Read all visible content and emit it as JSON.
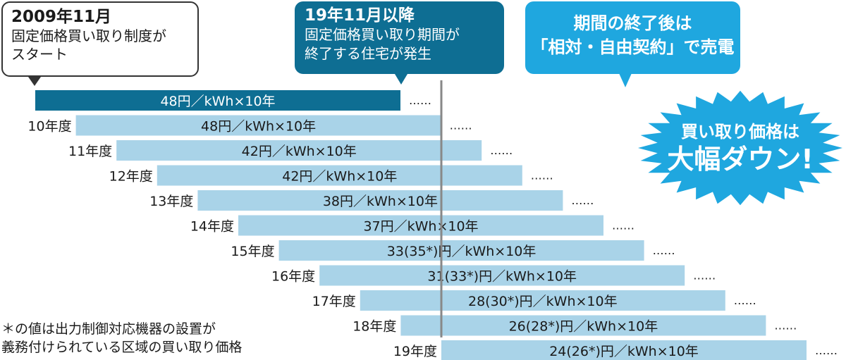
{
  "callouts": {
    "start": {
      "title": "2009年11月",
      "lines": [
        "固定価格買い取り制度が",
        "スタート"
      ]
    },
    "end": {
      "title": "19年11月以降",
      "lines": [
        "固定価格買い取り期間が",
        "終了する住宅が発生"
      ]
    },
    "after": {
      "lines": [
        "期間の終了後は",
        "「相対・自由契約」で売電"
      ]
    }
  },
  "burst": {
    "line1": "買い取り価格は",
    "line2": "大幅ダウン!"
  },
  "footnote": {
    "lines": [
      "＊の値は出力制御対応機器の設置が",
      "義務付けられている区域の買い取り価格"
    ]
  },
  "colors": {
    "first_bar": "#0e6e93",
    "bar": "#a9d3e8",
    "marker": "#888888",
    "callout_dark": "#0e6e93",
    "callout_light": "#1fa7df"
  },
  "chart_data": {
    "type": "bar",
    "orientation": "horizontal timeline",
    "series": [
      {
        "label": "",
        "value": "48円／kWh×10年",
        "price": 48,
        "price_restricted": null,
        "start_year": 2009,
        "years": 10
      },
      {
        "label": "10年度",
        "value": "48円／kWh×10年",
        "price": 48,
        "price_restricted": null,
        "start_year": 2010,
        "years": 10
      },
      {
        "label": "11年度",
        "value": "42円／kWh×10年",
        "price": 42,
        "price_restricted": null,
        "start_year": 2011,
        "years": 10
      },
      {
        "label": "12年度",
        "value": "42円／kWh×10年",
        "price": 42,
        "price_restricted": null,
        "start_year": 2012,
        "years": 10
      },
      {
        "label": "13年度",
        "value": "38円／kWh×10年",
        "price": 38,
        "price_restricted": null,
        "start_year": 2013,
        "years": 10
      },
      {
        "label": "14年度",
        "value": "37円／kWh×10年",
        "price": 37,
        "price_restricted": null,
        "start_year": 2014,
        "years": 10
      },
      {
        "label": "15年度",
        "value": "33(35*)円／kWh×10年",
        "price": 33,
        "price_restricted": 35,
        "start_year": 2015,
        "years": 10
      },
      {
        "label": "16年度",
        "value": "31(33*)円／kWh×10年",
        "price": 31,
        "price_restricted": 33,
        "start_year": 2016,
        "years": 10
      },
      {
        "label": "17年度",
        "value": "28(30*)円／kWh×10年",
        "price": 28,
        "price_restricted": 30,
        "start_year": 2017,
        "years": 10
      },
      {
        "label": "18年度",
        "value": "26(28*)円／kWh×10年",
        "price": 26,
        "price_restricted": 28,
        "start_year": 2018,
        "years": 10
      },
      {
        "label": "19年度",
        "value": "24(26*)円／kWh×10年",
        "price": 24,
        "price_restricted": 26,
        "start_year": 2019,
        "years": 10
      }
    ],
    "continuation": "……",
    "marker_year": 2019
  }
}
